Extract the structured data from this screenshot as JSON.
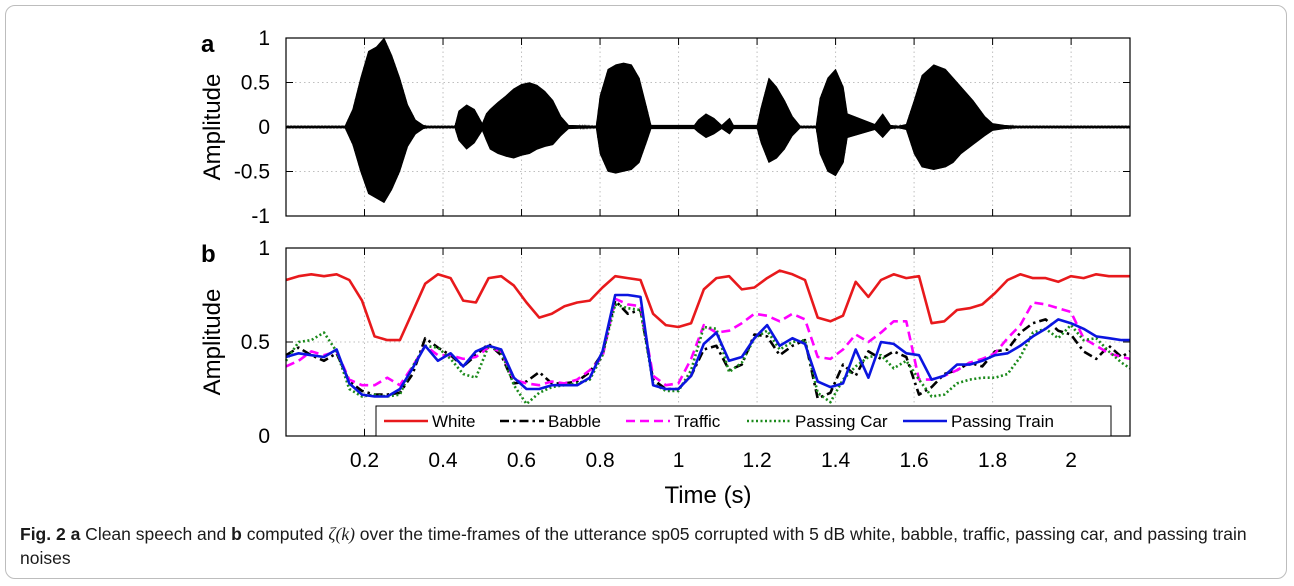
{
  "chart_data": [
    {
      "panel_label": "a",
      "type": "line",
      "ylabel": "Amplitude",
      "xlim": [
        0,
        2.15
      ],
      "ylim": [
        -1,
        1
      ],
      "yticks": [
        "1",
        "0.5",
        "0",
        "-0.5",
        "-1"
      ],
      "grid": true,
      "color": "#000000",
      "envelope": {
        "x": [
          0.0,
          0.15,
          0.17,
          0.19,
          0.21,
          0.23,
          0.25,
          0.27,
          0.29,
          0.31,
          0.33,
          0.35,
          0.36,
          0.43,
          0.44,
          0.46,
          0.48,
          0.5,
          0.51,
          0.52,
          0.54,
          0.56,
          0.58,
          0.6,
          0.62,
          0.64,
          0.66,
          0.68,
          0.7,
          0.72,
          0.79,
          0.8,
          0.82,
          0.84,
          0.86,
          0.88,
          0.9,
          0.92,
          0.93,
          1.04,
          1.05,
          1.07,
          1.09,
          1.11,
          1.13,
          1.14,
          1.2,
          1.21,
          1.23,
          1.25,
          1.27,
          1.29,
          1.31,
          1.35,
          1.36,
          1.38,
          1.4,
          1.42,
          1.43,
          1.5,
          1.52,
          1.54,
          1.56,
          1.58,
          1.6,
          1.62,
          1.65,
          1.68,
          1.7,
          1.72,
          1.75,
          1.78,
          1.8,
          1.83,
          1.86,
          1.9,
          2.15
        ],
        "upper": [
          0.01,
          0.01,
          0.2,
          0.55,
          0.85,
          0.9,
          1.0,
          0.8,
          0.55,
          0.25,
          0.08,
          0.02,
          0.01,
          0.01,
          0.18,
          0.25,
          0.2,
          0.04,
          0.15,
          0.2,
          0.28,
          0.35,
          0.43,
          0.48,
          0.5,
          0.47,
          0.4,
          0.3,
          0.12,
          0.02,
          0.01,
          0.35,
          0.65,
          0.7,
          0.72,
          0.7,
          0.55,
          0.2,
          0.02,
          0.02,
          0.08,
          0.15,
          0.1,
          0.02,
          0.1,
          0.02,
          0.02,
          0.22,
          0.55,
          0.45,
          0.3,
          0.12,
          0.01,
          0.01,
          0.32,
          0.55,
          0.65,
          0.45,
          0.15,
          0.03,
          0.15,
          0.02,
          0.01,
          0.03,
          0.3,
          0.58,
          0.7,
          0.65,
          0.55,
          0.45,
          0.3,
          0.12,
          0.04,
          0.02,
          0.01,
          0.01,
          0.01
        ],
        "lower": [
          -0.01,
          -0.01,
          -0.2,
          -0.5,
          -0.75,
          -0.8,
          -0.85,
          -0.7,
          -0.5,
          -0.22,
          -0.08,
          -0.02,
          -0.01,
          -0.01,
          -0.15,
          -0.25,
          -0.18,
          -0.04,
          -0.15,
          -0.25,
          -0.3,
          -0.33,
          -0.35,
          -0.32,
          -0.3,
          -0.25,
          -0.22,
          -0.2,
          -0.1,
          -0.02,
          -0.01,
          -0.3,
          -0.5,
          -0.52,
          -0.5,
          -0.48,
          -0.4,
          -0.15,
          -0.02,
          -0.02,
          -0.06,
          -0.12,
          -0.08,
          -0.02,
          -0.08,
          -0.02,
          -0.02,
          -0.18,
          -0.4,
          -0.35,
          -0.25,
          -0.1,
          -0.01,
          -0.01,
          -0.3,
          -0.5,
          -0.55,
          -0.4,
          -0.12,
          -0.03,
          -0.12,
          -0.02,
          -0.01,
          -0.03,
          -0.3,
          -0.45,
          -0.48,
          -0.45,
          -0.4,
          -0.3,
          -0.2,
          -0.1,
          -0.04,
          -0.02,
          -0.01,
          -0.01,
          -0.01
        ]
      }
    },
    {
      "panel_label": "b",
      "type": "line",
      "ylabel": "Amplitude",
      "xlabel": "Time (s)",
      "xlim": [
        0,
        2.15
      ],
      "ylim": [
        0,
        1
      ],
      "xticks": [
        "0.2",
        "0.4",
        "0.6",
        "0.8",
        "1",
        "1.2",
        "1.4",
        "1.6",
        "1.8",
        "2"
      ],
      "yticks": [
        "1",
        "0.5",
        "0"
      ],
      "grid": true,
      "legend_position": "bottom",
      "x": [
        0.0,
        0.0322,
        0.0645,
        0.0967,
        0.129,
        0.1612,
        0.1935,
        0.2257,
        0.258,
        0.2902,
        0.3225,
        0.3547,
        0.387,
        0.4192,
        0.4515,
        0.4837,
        0.516,
        0.5482,
        0.5805,
        0.6127,
        0.645,
        0.6772,
        0.7095,
        0.7417,
        0.774,
        0.8062,
        0.8385,
        0.8707,
        0.903,
        0.9352,
        0.9675,
        0.9997,
        1.032,
        1.0642,
        1.0965,
        1.1287,
        1.161,
        1.1932,
        1.2255,
        1.2577,
        1.29,
        1.3222,
        1.3545,
        1.3867,
        1.419,
        1.4512,
        1.4835,
        1.5157,
        1.548,
        1.5802,
        1.6125,
        1.6447,
        1.677,
        1.7092,
        1.7415,
        1.7737,
        1.806,
        1.8382,
        1.8705,
        1.9027,
        1.935,
        1.9672,
        1.9995,
        2.0317,
        2.064,
        2.0962,
        2.1285,
        2.15
      ],
      "series": [
        {
          "name": "White",
          "style": "solid",
          "color": "#e8191c",
          "values": [
            0.83,
            0.85,
            0.86,
            0.85,
            0.86,
            0.83,
            0.72,
            0.53,
            0.51,
            0.51,
            0.66,
            0.81,
            0.86,
            0.84,
            0.72,
            0.71,
            0.84,
            0.85,
            0.8,
            0.71,
            0.63,
            0.65,
            0.69,
            0.71,
            0.72,
            0.79,
            0.85,
            0.84,
            0.83,
            0.65,
            0.59,
            0.58,
            0.6,
            0.78,
            0.84,
            0.85,
            0.78,
            0.79,
            0.84,
            0.88,
            0.86,
            0.83,
            0.63,
            0.61,
            0.64,
            0.82,
            0.74,
            0.83,
            0.86,
            0.84,
            0.85,
            0.6,
            0.61,
            0.67,
            0.68,
            0.7,
            0.76,
            0.83,
            0.86,
            0.84,
            0.84,
            0.82,
            0.85,
            0.84,
            0.86,
            0.85,
            0.85,
            0.85
          ]
        },
        {
          "name": "Babble",
          "style": "dashdot",
          "color": "#000000",
          "values": [
            0.43,
            0.47,
            0.43,
            0.4,
            0.44,
            0.29,
            0.24,
            0.22,
            0.22,
            0.23,
            0.33,
            0.52,
            0.47,
            0.43,
            0.37,
            0.43,
            0.49,
            0.43,
            0.28,
            0.29,
            0.34,
            0.28,
            0.28,
            0.29,
            0.34,
            0.44,
            0.72,
            0.65,
            0.67,
            0.3,
            0.25,
            0.25,
            0.32,
            0.46,
            0.48,
            0.35,
            0.38,
            0.54,
            0.53,
            0.43,
            0.48,
            0.51,
            0.2,
            0.23,
            0.38,
            0.32,
            0.45,
            0.41,
            0.45,
            0.42,
            0.22,
            0.26,
            0.33,
            0.35,
            0.39,
            0.37,
            0.45,
            0.46,
            0.55,
            0.6,
            0.62,
            0.56,
            0.54,
            0.45,
            0.41,
            0.48,
            0.42,
            0.45
          ]
        },
        {
          "name": "Traffic",
          "style": "dashed",
          "color": "#ff00ff",
          "values": [
            0.37,
            0.4,
            0.45,
            0.43,
            0.45,
            0.3,
            0.27,
            0.27,
            0.31,
            0.27,
            0.37,
            0.48,
            0.43,
            0.43,
            0.41,
            0.42,
            0.47,
            0.45,
            0.3,
            0.28,
            0.27,
            0.29,
            0.28,
            0.3,
            0.35,
            0.42,
            0.73,
            0.7,
            0.69,
            0.32,
            0.27,
            0.28,
            0.41,
            0.59,
            0.55,
            0.56,
            0.6,
            0.65,
            0.64,
            0.61,
            0.65,
            0.62,
            0.42,
            0.41,
            0.46,
            0.54,
            0.5,
            0.55,
            0.61,
            0.61,
            0.3,
            0.3,
            0.32,
            0.35,
            0.39,
            0.41,
            0.44,
            0.52,
            0.59,
            0.71,
            0.7,
            0.68,
            0.66,
            0.52,
            0.48,
            0.44,
            0.42,
            0.41
          ]
        },
        {
          "name": "Passing Car",
          "style": "dotted",
          "color": "#1b8a1b",
          "values": [
            0.4,
            0.5,
            0.51,
            0.55,
            0.45,
            0.25,
            0.21,
            0.22,
            0.21,
            0.22,
            0.37,
            0.48,
            0.47,
            0.41,
            0.33,
            0.31,
            0.48,
            0.45,
            0.27,
            0.17,
            0.23,
            0.26,
            0.27,
            0.28,
            0.3,
            0.43,
            0.7,
            0.68,
            0.67,
            0.28,
            0.24,
            0.24,
            0.35,
            0.58,
            0.57,
            0.34,
            0.39,
            0.52,
            0.56,
            0.46,
            0.5,
            0.51,
            0.23,
            0.18,
            0.3,
            0.37,
            0.42,
            0.43,
            0.36,
            0.4,
            0.3,
            0.21,
            0.22,
            0.28,
            0.3,
            0.31,
            0.31,
            0.33,
            0.42,
            0.55,
            0.57,
            0.52,
            0.59,
            0.51,
            0.52,
            0.45,
            0.39,
            0.36
          ]
        },
        {
          "name": "Passing Train",
          "style": "solid",
          "color": "#0b15e0",
          "values": [
            0.42,
            0.44,
            0.43,
            0.42,
            0.46,
            0.28,
            0.22,
            0.21,
            0.21,
            0.25,
            0.36,
            0.48,
            0.4,
            0.44,
            0.37,
            0.45,
            0.48,
            0.46,
            0.31,
            0.25,
            0.25,
            0.27,
            0.27,
            0.27,
            0.31,
            0.45,
            0.75,
            0.75,
            0.74,
            0.27,
            0.25,
            0.25,
            0.32,
            0.49,
            0.55,
            0.4,
            0.42,
            0.52,
            0.59,
            0.48,
            0.52,
            0.49,
            0.29,
            0.26,
            0.28,
            0.46,
            0.31,
            0.5,
            0.49,
            0.44,
            0.43,
            0.3,
            0.32,
            0.38,
            0.38,
            0.4,
            0.43,
            0.44,
            0.48,
            0.53,
            0.57,
            0.62,
            0.6,
            0.57,
            0.53,
            0.52,
            0.51,
            0.51
          ]
        }
      ]
    }
  ],
  "caption": {
    "fig": "Fig. 2",
    "a_label": "a",
    "text1": " Clean speech and ",
    "b_label": "b",
    "text2": " computed ",
    "math": "ζ(k)",
    "text3": " over the time-frames of the utterance sp05 corrupted with 5 dB white, babble, traffic, passing car, and passing train noises"
  }
}
